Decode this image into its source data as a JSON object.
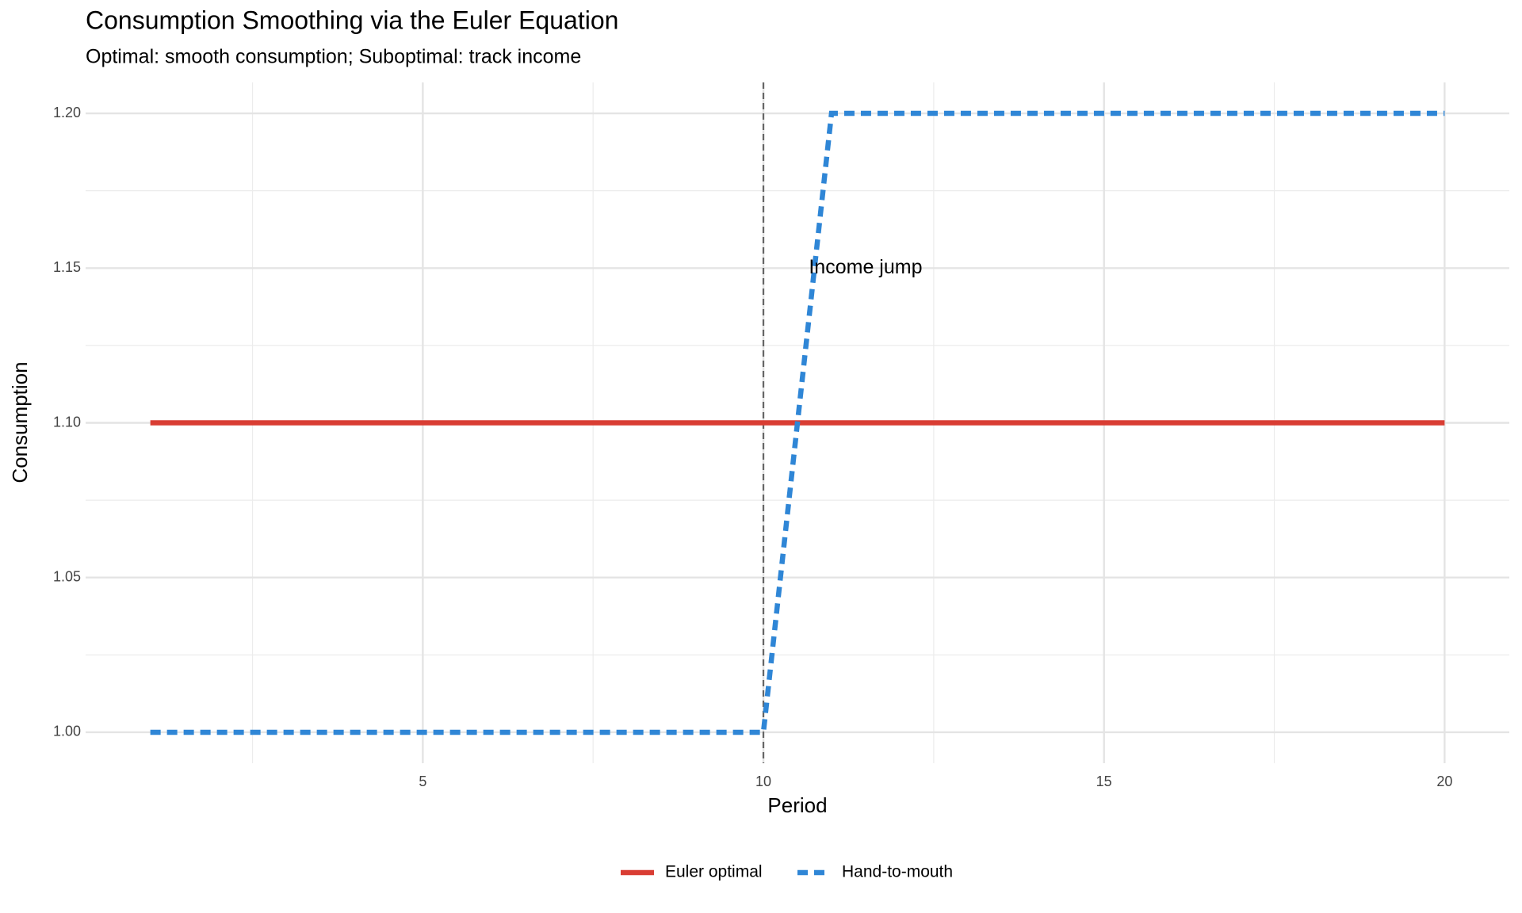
{
  "chart_data": {
    "type": "line",
    "title": "Consumption Smoothing via the Euler Equation",
    "subtitle": "Optimal: smooth consumption; Suboptimal: track income",
    "x_label": "Period",
    "y_label": "Consumption",
    "x": [
      1,
      2,
      3,
      4,
      5,
      6,
      7,
      8,
      9,
      10,
      11,
      12,
      13,
      14,
      15,
      16,
      17,
      18,
      19,
      20
    ],
    "series": [
      {
        "name": "Euler optimal",
        "color": "#d93d33",
        "dash": false,
        "values": [
          1.1,
          1.1,
          1.1,
          1.1,
          1.1,
          1.1,
          1.1,
          1.1,
          1.1,
          1.1,
          1.1,
          1.1,
          1.1,
          1.1,
          1.1,
          1.1,
          1.1,
          1.1,
          1.1,
          1.1
        ]
      },
      {
        "name": "Hand-to-mouth",
        "color": "#2f86d6",
        "dash": true,
        "values": [
          1.0,
          1.0,
          1.0,
          1.0,
          1.0,
          1.0,
          1.0,
          1.0,
          1.0,
          1.0,
          1.2,
          1.2,
          1.2,
          1.2,
          1.2,
          1.2,
          1.2,
          1.2,
          1.2,
          1.2
        ]
      }
    ],
    "vline": 10,
    "annotations": [
      {
        "text": "Income jump",
        "x": 11.5,
        "y": 1.15
      }
    ],
    "xlim": [
      0.05,
      20.95
    ],
    "xticks": [
      5,
      10,
      15,
      20
    ],
    "ylim": [
      0.99,
      1.21
    ],
    "yticks": [
      {
        "value": 1.0,
        "label": "1.00"
      },
      1.05,
      {
        "value": 1.1,
        "label": "1.10"
      },
      1.15,
      {
        "value": 1.2,
        "label": "1.20"
      }
    ],
    "grid": true,
    "legend": "bottom"
  }
}
